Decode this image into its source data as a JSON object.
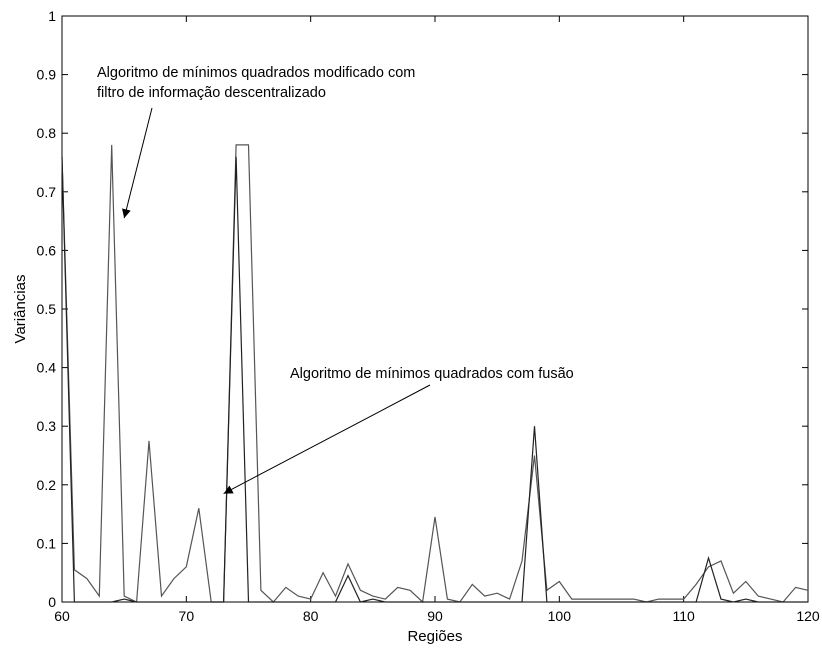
{
  "chart_data": {
    "type": "line",
    "xlabel": "Regiões",
    "ylabel": "Variâncias",
    "xlim": [
      60,
      120
    ],
    "ylim": [
      0,
      1
    ],
    "xticks": [
      60,
      70,
      80,
      90,
      100,
      110,
      120
    ],
    "yticks": [
      0,
      0.1,
      0.2,
      0.3,
      0.4,
      0.5,
      0.6,
      0.7,
      0.8,
      0.9,
      1
    ],
    "grid": false,
    "series": [
      {
        "color": "#555555",
        "x": [
          60,
          61,
          62,
          63,
          64,
          65,
          66,
          67,
          68,
          69,
          70,
          71,
          72,
          73,
          74,
          75,
          76,
          77,
          78,
          79,
          80,
          81,
          82,
          83,
          84,
          85,
          86,
          87,
          88,
          89,
          90,
          91,
          92,
          93,
          94,
          95,
          96,
          97,
          98,
          99,
          100,
          101,
          102,
          103,
          104,
          105,
          106,
          107,
          108,
          109,
          110,
          111,
          112,
          113,
          114,
          115,
          116,
          117,
          118,
          119,
          120
        ],
        "values": [
          0.76,
          0.055,
          0.04,
          0.01,
          0.78,
          0.01,
          0.0,
          0.275,
          0.01,
          0.04,
          0.06,
          0.16,
          0.0,
          0.0,
          0.78,
          0.78,
          0.02,
          0.0,
          0.025,
          0.01,
          0.005,
          0.05,
          0.01,
          0.065,
          0.02,
          0.01,
          0.005,
          0.025,
          0.02,
          0.0,
          0.145,
          0.005,
          0.0,
          0.03,
          0.01,
          0.015,
          0.005,
          0.07,
          0.25,
          0.02,
          0.035,
          0.005,
          0.005,
          0.005,
          0.005,
          0.005,
          0.005,
          0.0,
          0.005,
          0.005,
          0.005,
          0.03,
          0.06,
          0.07,
          0.015,
          0.035,
          0.01,
          0.005,
          0.0,
          0.025,
          0.02
        ]
      },
      {
        "color": "#222222",
        "x": [
          60,
          61,
          62,
          63,
          64,
          65,
          66,
          67,
          68,
          69,
          70,
          71,
          72,
          73,
          74,
          75,
          76,
          77,
          78,
          79,
          80,
          81,
          82,
          83,
          84,
          85,
          86,
          87,
          88,
          89,
          90,
          91,
          92,
          93,
          94,
          95,
          96,
          97,
          98,
          99,
          100,
          101,
          102,
          103,
          104,
          105,
          106,
          107,
          108,
          109,
          110,
          111,
          112,
          113,
          114,
          115,
          116,
          117,
          118,
          119,
          120
        ],
        "values": [
          0.76,
          0.0,
          0.0,
          0.0,
          0.0,
          0.005,
          0.0,
          0.0,
          0.0,
          0.0,
          0.0,
          0.0,
          0.0,
          0.0,
          0.76,
          0.0,
          0.0,
          0.0,
          0.0,
          0.0,
          0.0,
          0.0,
          0.0,
          0.045,
          0.0,
          0.005,
          0.0,
          0.0,
          0.0,
          0.0,
          0.0,
          0.0,
          0.0,
          0.0,
          0.0,
          0.0,
          0.0,
          0.0,
          0.3,
          0.0,
          0.0,
          0.0,
          0.0,
          0.0,
          0.0,
          0.0,
          0.0,
          0.0,
          0.0,
          0.0,
          0.0,
          0.0,
          0.075,
          0.005,
          0.0,
          0.005,
          0.0,
          0.0,
          0.0,
          0.0,
          0.0
        ]
      }
    ],
    "annotations": [
      {
        "lines": [
          "Algoritmo de mínimos quadrados modificado com",
          "filtro de informação descentralizado"
        ],
        "arrow_to": [
          65,
          0.655
        ]
      },
      {
        "lines": [
          "Algoritmo de mínimos quadrados com fusão"
        ],
        "arrow_to": [
          73,
          0.185
        ]
      }
    ]
  }
}
